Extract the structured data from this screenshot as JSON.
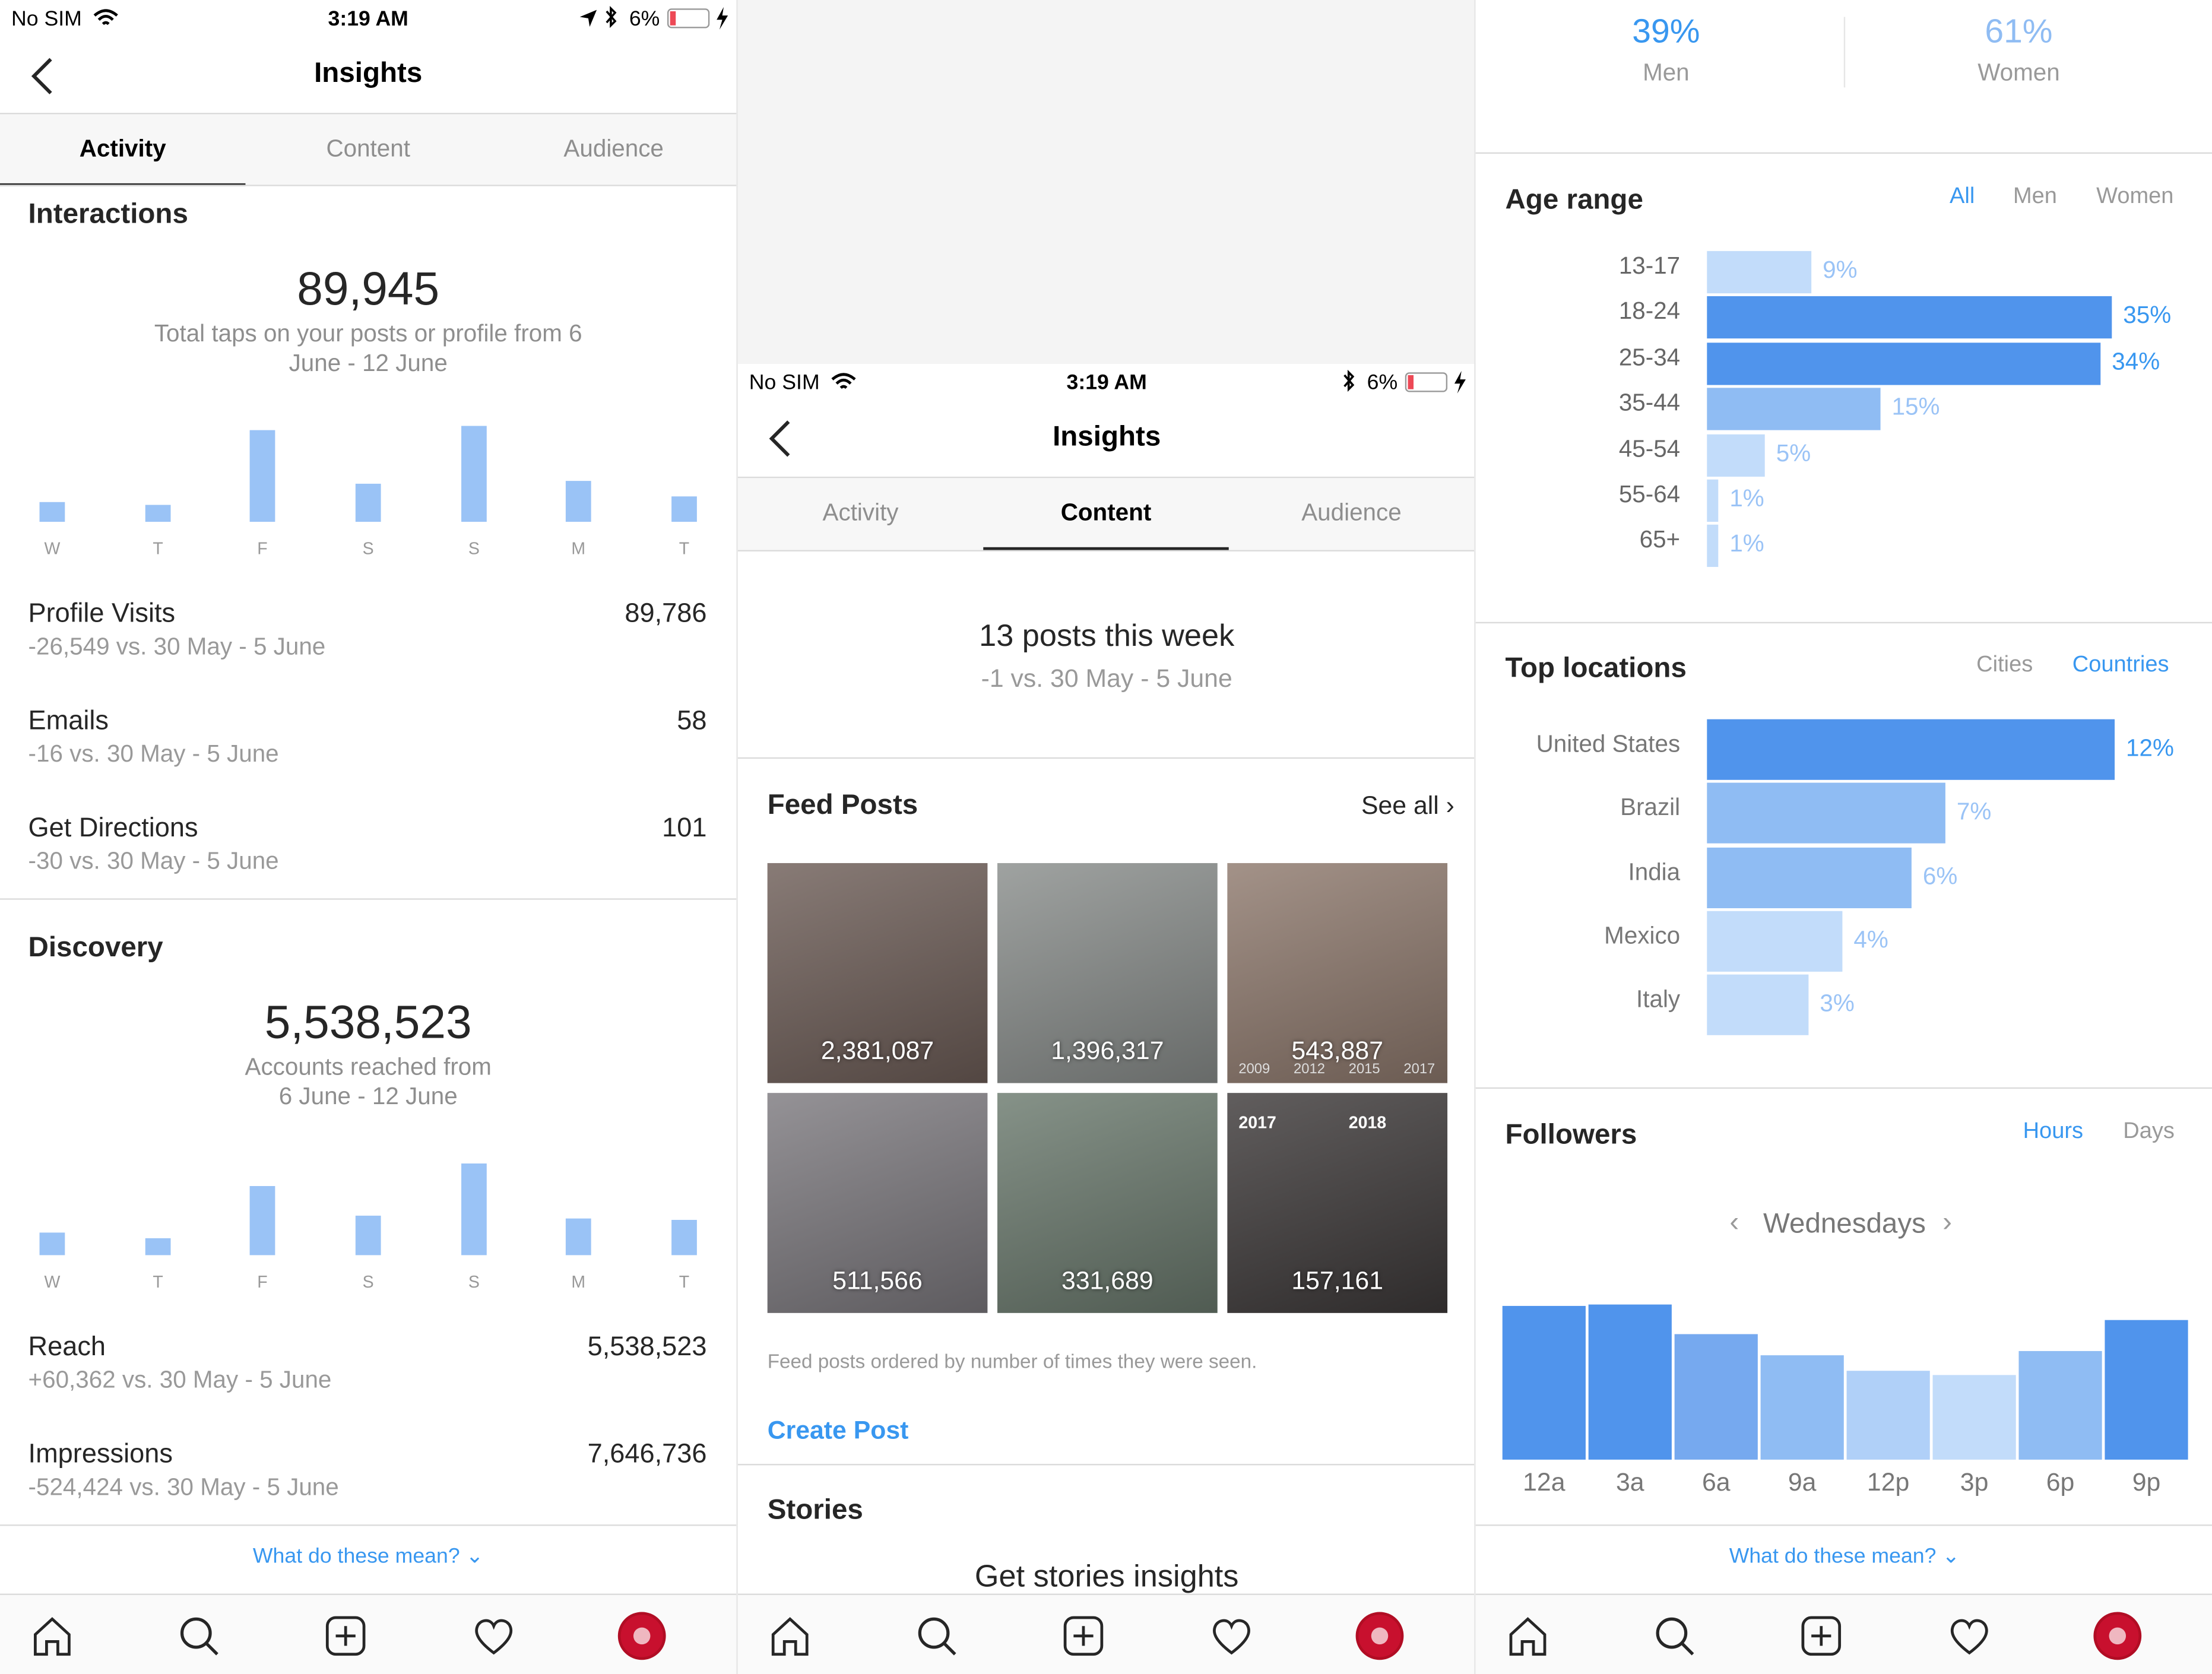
{
  "colors": {
    "accent": "#3897f0",
    "bar_light": "#9ac3f6",
    "bar_dark": "#5094ec",
    "bar_mid": "#8fbcf3",
    "bar_pale": "#c2dcfa",
    "battery_low": "#ed4956"
  },
  "panel1": {
    "status": {
      "carrier": "No SIM",
      "time": "3:19 AM",
      "battery": "6%"
    },
    "title": "Insights",
    "tabs": [
      "Activity",
      "Content",
      "Audience"
    ],
    "interactions": {
      "title": "Interactions",
      "total": "89,945",
      "caption": "Total taps on your posts or profile from 6 June - 12 June",
      "days": [
        "W",
        "T",
        "F",
        "S",
        "S",
        "M",
        "T"
      ],
      "bar_values": [
        0.21,
        0.18,
        1.0,
        0.42,
        1.05,
        0.45,
        0.28
      ]
    },
    "metrics1": [
      {
        "label": "Profile Visits",
        "value": "89,786",
        "delta": "-26,549 vs. 30 May - 5 June"
      },
      {
        "label": "Emails",
        "value": "58",
        "delta": "-16 vs. 30 May - 5 June"
      },
      {
        "label": "Get Directions",
        "value": "101",
        "delta": "-30 vs. 30 May - 5 June"
      }
    ],
    "discovery": {
      "title": "Discovery",
      "total": "5,538,523",
      "caption_line1": "Accounts reached from",
      "caption_line2": "6 June - 12 June",
      "days": [
        "W",
        "T",
        "F",
        "S",
        "S",
        "M",
        "T"
      ],
      "bar_values": [
        0.25,
        0.18,
        0.75,
        0.43,
        1.0,
        0.4,
        0.39
      ]
    },
    "metrics2": [
      {
        "label": "Reach",
        "value": "5,538,523",
        "delta": "+60,362 vs. 30 May - 5 June"
      },
      {
        "label": "Impressions",
        "value": "7,646,736",
        "delta": "-524,424 vs. 30 May - 5 June"
      }
    ],
    "help": "What do these mean?"
  },
  "panel2": {
    "status": {
      "carrier": "No SIM",
      "time": "3:19 AM",
      "battery": "6%"
    },
    "title": "Insights",
    "tabs": [
      "Activity",
      "Content",
      "Audience"
    ],
    "posts_week": "13 posts this week",
    "posts_delta": "-1 vs. 30 May - 5 June",
    "feed_title": "Feed Posts",
    "see_all": "See all",
    "posts": [
      {
        "count": "2,381,087",
        "bg": "#6e5e58"
      },
      {
        "count": "1,396,317",
        "bg": "#8a8e8c"
      },
      {
        "count": "543,887",
        "bg": "#8f7a6e",
        "labels": [
          "2009",
          "2012",
          "2015",
          "2017"
        ]
      },
      {
        "count": "511,566",
        "bg": "#7d7a7f"
      },
      {
        "count": "331,689",
        "bg": "#6b7a6e"
      },
      {
        "count": "157,161",
        "bg": "#3e3a3a",
        "labels": [
          "2017",
          "2018"
        ]
      }
    ],
    "feed_note": "Feed posts ordered by number of times they were seen.",
    "create_post": "Create Post",
    "stories_title": "Stories",
    "stories_cta": "Get stories insights"
  },
  "panel3": {
    "gender": [
      {
        "pct": "39%",
        "label": "Men"
      },
      {
        "pct": "61%",
        "label": "Women"
      }
    ],
    "age": {
      "title": "Age range",
      "filters": [
        "All",
        "Men",
        "Women"
      ],
      "rows": [
        {
          "range": "13-17",
          "pct": "9%",
          "value": 9
        },
        {
          "range": "18-24",
          "pct": "35%",
          "value": 35
        },
        {
          "range": "25-34",
          "pct": "34%",
          "value": 34
        },
        {
          "range": "35-44",
          "pct": "15%",
          "value": 15
        },
        {
          "range": "45-54",
          "pct": "5%",
          "value": 5
        },
        {
          "range": "55-64",
          "pct": "1%",
          "value": 1
        },
        {
          "range": "65+",
          "pct": "1%",
          "value": 1
        }
      ]
    },
    "locations": {
      "title": "Top locations",
      "filters": [
        "Cities",
        "Countries"
      ],
      "rows": [
        {
          "name": "United States",
          "pct": "12%",
          "value": 12
        },
        {
          "name": "Brazil",
          "pct": "7%",
          "value": 7
        },
        {
          "name": "India",
          "pct": "6%",
          "value": 6
        },
        {
          "name": "Mexico",
          "pct": "4%",
          "value": 4
        },
        {
          "name": "Italy",
          "pct": "3%",
          "value": 3
        }
      ]
    },
    "followers": {
      "title": "Followers",
      "filters": [
        "Hours",
        "Days"
      ],
      "day": "Wednesdays",
      "hours": [
        "12a",
        "3a",
        "6a",
        "9a",
        "12p",
        "3p",
        "6p",
        "9p"
      ],
      "values": [
        1.0,
        1.01,
        0.82,
        0.68,
        0.58,
        0.55,
        0.71,
        0.91
      ]
    },
    "help": "What do these mean?"
  }
}
